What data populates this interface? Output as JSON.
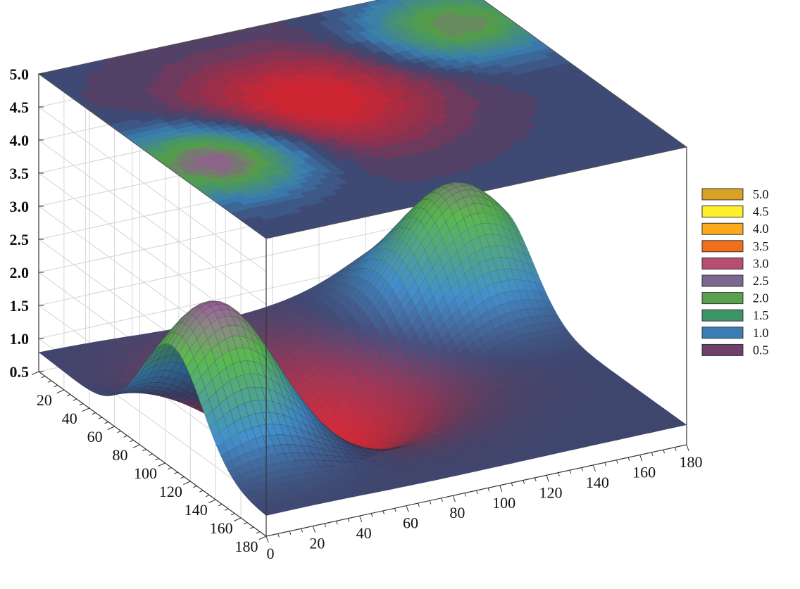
{
  "chart_data": {
    "type": "surface",
    "x_ticks": [
      "0",
      "20",
      "40",
      "60",
      "80",
      "100",
      "120",
      "140",
      "160",
      "180"
    ],
    "y_ticks": [
      "20",
      "40",
      "60",
      "80",
      "100",
      "120",
      "140",
      "160",
      "180"
    ],
    "z_ticks": [
      "0.5",
      "1.0",
      "1.5",
      "2.0",
      "2.5",
      "3.0",
      "3.5",
      "4.0",
      "4.5",
      "5.0"
    ],
    "xlim": [
      0,
      180
    ],
    "ylim": [
      0,
      180
    ],
    "zlim": [
      0.5,
      5.0
    ],
    "base_level": 0.8,
    "grid": true,
    "legend_position": "right",
    "legend": [
      {
        "label": "5.0",
        "color": "#d9a227"
      },
      {
        "label": "4.5",
        "color": "#ffee2a"
      },
      {
        "label": "4.0",
        "color": "#ffaa1a"
      },
      {
        "label": "3.5",
        "color": "#ef6f1a"
      },
      {
        "label": "3.0",
        "color": "#b64d73"
      },
      {
        "label": "2.5",
        "color": "#7b678f"
      },
      {
        "label": "2.0",
        "color": "#59a24c"
      },
      {
        "label": "1.5",
        "color": "#3d9467"
      },
      {
        "label": "1.0",
        "color": "#3a7db2"
      },
      {
        "label": "0.5",
        "color": "#6e3f68"
      }
    ],
    "features": [
      {
        "name": "magenta peak",
        "x": 20,
        "y": 105,
        "height": 2.3
      },
      {
        "name": "green peak",
        "x": 160,
        "y": 35,
        "height": 1.8
      },
      {
        "name": "red valley",
        "x": 75,
        "y": 75,
        "height": -1.3
      }
    ]
  }
}
